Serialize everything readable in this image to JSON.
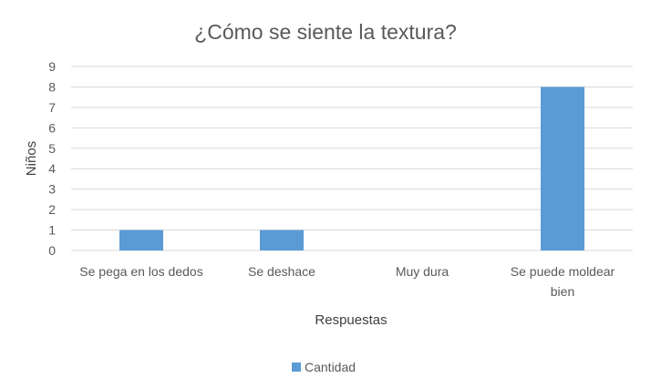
{
  "chart_data": {
    "type": "bar",
    "title": "¿Cómo se siente la textura?",
    "xlabel": "Respuestas",
    "ylabel": "Niños",
    "categories": [
      [
        "Se pega en los dedos"
      ],
      [
        "Se deshace"
      ],
      [
        "Muy dura"
      ],
      [
        "Se puede moldear",
        "bien"
      ]
    ],
    "series": [
      {
        "name": "Cantidad",
        "values": [
          1,
          1,
          0,
          8
        ],
        "color": "#5b9bd5"
      }
    ],
    "ylim": [
      0,
      9
    ],
    "yticks": [
      0,
      1,
      2,
      3,
      4,
      5,
      6,
      7,
      8,
      9
    ],
    "grid": true,
    "legend": "bottom"
  },
  "colors": {
    "bar": "#5b9bd5",
    "grid": "#d9d9d9",
    "text": "#595959"
  }
}
